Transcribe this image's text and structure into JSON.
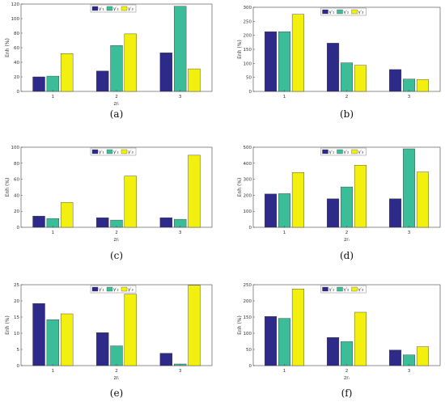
{
  "colors": {
    "s1": "#2e2a8a",
    "s2": "#3cbd9a",
    "s3": "#f3f00f"
  },
  "chart_data": [
    {
      "type": "bar",
      "panel_label": "(a)",
      "categories": [
        "1",
        "2",
        "3"
      ],
      "xlabel": "zrᵢ",
      "ylabel": "Enh (%)",
      "ylim": [
        0,
        120
      ],
      "yticks": [
        "0",
        "20",
        "40",
        "60",
        "80",
        "100",
        "120"
      ],
      "legend": [
        "γ′₁",
        "γ′₂",
        "γ′₃"
      ],
      "series": [
        {
          "name": "γ′₁",
          "values": [
            20,
            28,
            53
          ]
        },
        {
          "name": "γ′₂",
          "values": [
            21,
            63,
            117
          ]
        },
        {
          "name": "γ′₃",
          "values": [
            52,
            79,
            31
          ]
        }
      ]
    },
    {
      "type": "bar",
      "panel_label": "(b)",
      "categories": [
        "1",
        "2",
        "3"
      ],
      "xlabel": "",
      "ylabel": "Enh (%)",
      "ylim": [
        0,
        300
      ],
      "yticks": [
        "0",
        "50",
        "100",
        "150",
        "200",
        "250",
        "300"
      ],
      "legend": [
        "γ′₁",
        "γ′₂",
        "γ′₃"
      ],
      "series": [
        {
          "name": "γ′₁",
          "values": [
            213,
            172,
            78
          ]
        },
        {
          "name": "γ′₂",
          "values": [
            213,
            102,
            44
          ]
        },
        {
          "name": "γ′₃",
          "values": [
            275,
            93,
            42
          ]
        }
      ]
    },
    {
      "type": "bar",
      "panel_label": "(c)",
      "categories": [
        "1",
        "2",
        "3"
      ],
      "xlabel": "zrᵢ",
      "ylabel": "Enh (%)",
      "ylim": [
        0,
        100
      ],
      "yticks": [
        "0",
        "20",
        "40",
        "60",
        "80",
        "100"
      ],
      "legend": [
        "γ′₁",
        "γ′₂",
        "γ′₃"
      ],
      "series": [
        {
          "name": "γ′₁",
          "values": [
            14,
            12,
            12
          ]
        },
        {
          "name": "γ′₂",
          "values": [
            11,
            9,
            10
          ]
        },
        {
          "name": "γ′₃",
          "values": [
            31,
            64,
            90
          ]
        }
      ]
    },
    {
      "type": "bar",
      "panel_label": "(d)",
      "categories": [
        "1",
        "2",
        "3"
      ],
      "xlabel": "zrᵢ",
      "ylabel": "Enh (%)",
      "ylim": [
        0,
        500
      ],
      "yticks": [
        "0",
        "100",
        "200",
        "300",
        "400",
        "500"
      ],
      "legend": [
        "γ′₁",
        "γ′₂",
        "γ′₃"
      ],
      "series": [
        {
          "name": "γ′₁",
          "values": [
            208,
            178,
            178
          ]
        },
        {
          "name": "γ′₂",
          "values": [
            210,
            252,
            490
          ]
        },
        {
          "name": "γ′₃",
          "values": [
            342,
            388,
            345
          ]
        }
      ]
    },
    {
      "type": "bar",
      "panel_label": "(e)",
      "categories": [
        "1",
        "2",
        "3"
      ],
      "xlabel": "zrᵢ",
      "ylabel": "Enh (%)",
      "ylim": [
        0,
        25
      ],
      "yticks": [
        "0",
        "5",
        "10",
        "15",
        "20",
        "25"
      ],
      "legend": [
        "γ′₁",
        "γ′₂",
        "γ′₃"
      ],
      "series": [
        {
          "name": "γ′₁",
          "values": [
            19.2,
            10.2,
            3.8
          ]
        },
        {
          "name": "γ′₂",
          "values": [
            14.2,
            6.1,
            0.5
          ]
        },
        {
          "name": "γ′₃",
          "values": [
            16.0,
            22.1,
            24.8
          ]
        }
      ]
    },
    {
      "type": "bar",
      "panel_label": "(f)",
      "categories": [
        "1",
        "2",
        "3"
      ],
      "xlabel": "zrᵢ",
      "ylabel": "Enh (%)",
      "ylim": [
        0,
        250
      ],
      "yticks": [
        "0",
        "50",
        "100",
        "150",
        "200",
        "250"
      ],
      "legend": [
        "γ′₁",
        "γ′₂",
        "γ′₃"
      ],
      "series": [
        {
          "name": "γ′₁",
          "values": [
            152,
            87,
            48
          ]
        },
        {
          "name": "γ′₂",
          "values": [
            146,
            74,
            33
          ]
        },
        {
          "name": "γ′₃",
          "values": [
            237,
            165,
            58
          ]
        }
      ]
    }
  ]
}
